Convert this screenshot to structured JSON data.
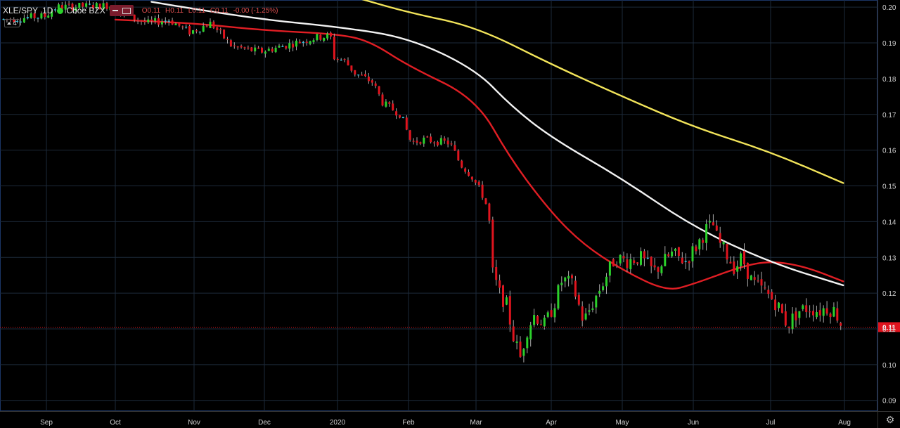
{
  "header": {
    "symbol": "XLE/SPY",
    "interval": "1D",
    "exchange": "Cboe BZX",
    "ohlc": {
      "open": "O0.11",
      "high": "H0.11",
      "low": "L0.11",
      "close": "C0.11",
      "change": "-0.00 (-1.25%)"
    },
    "indicator_count": "4"
  },
  "chart_data": {
    "type": "candlestick",
    "title": "",
    "ylim": [
      0.087,
      0.202
    ],
    "y_ticks": [
      "0.20",
      "0.19",
      "0.18",
      "0.17",
      "0.16",
      "0.15",
      "0.14",
      "0.13",
      "0.12",
      "0.11",
      "0.10",
      "0.09"
    ],
    "x_ticks": [
      "Sep",
      "Oct",
      "Nov",
      "Dec",
      "2020",
      "Feb",
      "Mar",
      "Apr",
      "May",
      "Jun",
      "Jul",
      "Aug"
    ],
    "last_price_label": "0.11",
    "last_price": 0.1105,
    "colors": {
      "up": "#2bd12b",
      "down": "#e0141e",
      "small_up": "#29c5e6",
      "ma_red": "#e01e24",
      "ma_white": "#f2f2f2",
      "ma_yellow": "#f2e45a",
      "price_line": "#e0141e",
      "grid": "#1d2a3a"
    },
    "moving_averages": [
      {
        "color_key": "ma_red",
        "points": [
          [
            "Oct",
            0.1965
          ],
          [
            "Nov",
            0.1955
          ],
          [
            "Dec",
            0.1935
          ],
          [
            "2020",
            0.1925
          ],
          [
            "Jan 15",
            0.1905
          ],
          [
            "Feb",
            0.1835
          ],
          [
            "Mar",
            0.1745
          ],
          [
            "Mar 15",
            0.1575
          ],
          [
            "Apr",
            0.1425
          ],
          [
            "Apr 15",
            0.1335
          ],
          [
            "May",
            0.1265
          ],
          [
            "May 20",
            0.1205
          ],
          [
            "Jun",
            0.1225
          ],
          [
            "Jun 20",
            0.1275
          ],
          [
            "Jul",
            0.129
          ],
          [
            "Jul 15",
            0.1275
          ],
          [
            "Jul 31",
            0.1233
          ]
        ]
      },
      {
        "color_key": "ma_white",
        "points": [
          [
            "Oct 15",
            0.2015
          ],
          [
            "Nov",
            0.1995
          ],
          [
            "Dec",
            0.1965
          ],
          [
            "2020",
            0.1945
          ],
          [
            "Feb",
            0.1915
          ],
          [
            "Mar",
            0.1825
          ],
          [
            "Mar 15",
            0.1725
          ],
          [
            "Apr",
            0.1635
          ],
          [
            "May",
            0.152
          ],
          [
            "Jun",
            0.1385
          ],
          [
            "Jul",
            0.1285
          ],
          [
            "Jul 31",
            0.1222
          ]
        ]
      },
      {
        "color_key": "ma_yellow",
        "points": [
          [
            "Jan 10",
            0.2025
          ],
          [
            "Feb",
            0.1985
          ],
          [
            "Mar",
            0.1945
          ],
          [
            "Apr",
            0.184
          ],
          [
            "May",
            0.175
          ],
          [
            "Jun",
            0.1665
          ],
          [
            "Jul",
            0.1595
          ],
          [
            "Jul 31",
            0.1508
          ]
        ]
      }
    ]
  }
}
